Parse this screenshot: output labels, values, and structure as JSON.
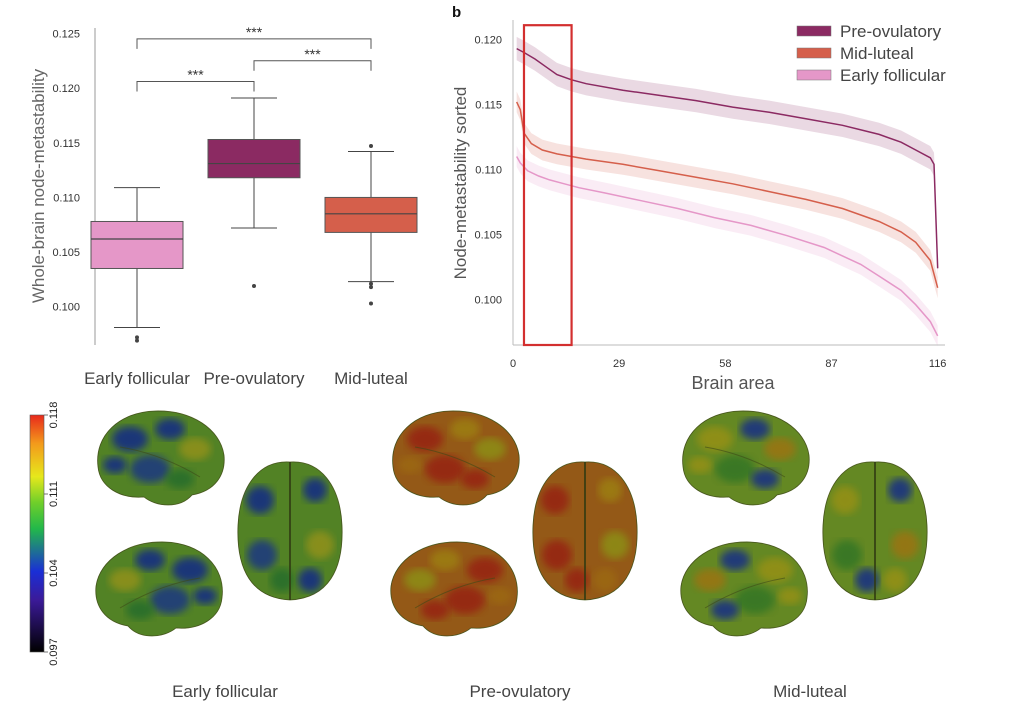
{
  "colors": {
    "early_follicular": "#E597C8",
    "pre_ovulatory": "#8B2A62",
    "mid_luteal": "#D55F4B",
    "highlight_box": "#D32F2F"
  },
  "chart_data": [
    {
      "type": "box",
      "ylabel": "Whole-brain node-metastability",
      "ylim": [
        0.0965,
        0.1255
      ],
      "yticks": [
        0.1,
        0.105,
        0.11,
        0.115,
        0.12,
        0.125
      ],
      "ytick_labels": [
        "0.100",
        "0.105",
        "0.110",
        "0.115",
        "0.120",
        "0.125"
      ],
      "categories": [
        "Early follicular",
        "Pre-ovulatory",
        "Mid-luteal"
      ],
      "boxes": [
        {
          "name": "Early follicular",
          "q1": 0.1035,
          "median": 0.1062,
          "q3": 0.1078,
          "whisker_low": 0.0981,
          "whisker_high": 0.1109,
          "outliers": [
            0.0969,
            0.0972
          ]
        },
        {
          "name": "Pre-ovulatory",
          "q1": 0.1118,
          "median": 0.1131,
          "q3": 0.1153,
          "whisker_low": 0.1072,
          "whisker_high": 0.1191,
          "outliers": [
            0.1019
          ]
        },
        {
          "name": "Mid-luteal",
          "q1": 0.1068,
          "median": 0.1085,
          "q3": 0.11,
          "whisker_low": 0.1023,
          "whisker_high": 0.1142,
          "outliers": [
            0.1147,
            0.1018,
            0.1021,
            0.1003
          ]
        }
      ],
      "significance": [
        {
          "from": 0,
          "to": 2,
          "label": "***",
          "y": 0.1245
        },
        {
          "from": 0,
          "to": 1,
          "label": "***",
          "y": 0.1206
        },
        {
          "from": 1,
          "to": 2,
          "label": "***",
          "y": 0.1225
        }
      ]
    },
    {
      "type": "line",
      "panel_label": "b",
      "xlabel": "Brain area",
      "ylabel": "Node-metastability sorted",
      "xlim": [
        0,
        118
      ],
      "ylim": [
        0.0965,
        0.1215
      ],
      "xticks": [
        0,
        29,
        58,
        87,
        116
      ],
      "xtick_labels": [
        "0",
        "29",
        "58",
        "87",
        "116"
      ],
      "yticks": [
        0.1,
        0.105,
        0.11,
        0.115,
        0.12
      ],
      "ytick_labels": [
        "0.100",
        "0.105",
        "0.110",
        "0.115",
        "0.120"
      ],
      "legend_position": "top-right",
      "highlight_range": {
        "x": [
          3,
          16
        ],
        "y": [
          0.0965,
          0.1211
        ]
      },
      "series": [
        {
          "name": "Pre-ovulatory",
          "color_key": "pre_ovulatory",
          "x": [
            1,
            3,
            6,
            9,
            12,
            16,
            20,
            30,
            40,
            50,
            60,
            70,
            80,
            90,
            100,
            106,
            110,
            114,
            115,
            116
          ],
          "y": [
            0.1193,
            0.119,
            0.1185,
            0.1179,
            0.1173,
            0.1169,
            0.1166,
            0.1161,
            0.1157,
            0.1153,
            0.1148,
            0.1144,
            0.1139,
            0.1134,
            0.1127,
            0.1121,
            0.1115,
            0.1109,
            0.1104,
            0.1024
          ],
          "band": 0.0009
        },
        {
          "name": "Mid-luteal",
          "color_key": "mid_luteal",
          "x": [
            1,
            2,
            3,
            5,
            8,
            12,
            16,
            20,
            30,
            40,
            50,
            60,
            70,
            80,
            90,
            100,
            106,
            110,
            114,
            116
          ],
          "y": [
            0.1152,
            0.1146,
            0.1128,
            0.112,
            0.1115,
            0.1112,
            0.111,
            0.1108,
            0.1104,
            0.1099,
            0.1094,
            0.1089,
            0.1083,
            0.1077,
            0.107,
            0.106,
            0.1052,
            0.1044,
            0.103,
            0.1009
          ],
          "band": 0.0008
        },
        {
          "name": "Early follicular",
          "color_key": "early_follicular",
          "x": [
            1,
            2,
            4,
            7,
            10,
            14,
            18,
            25,
            35,
            45,
            55,
            65,
            75,
            85,
            95,
            100,
            106,
            110,
            114,
            116
          ],
          "y": [
            0.111,
            0.1105,
            0.1099,
            0.1095,
            0.1092,
            0.1089,
            0.1086,
            0.1082,
            0.1076,
            0.107,
            0.1063,
            0.1057,
            0.1049,
            0.104,
            0.1027,
            0.1018,
            0.1007,
            0.0996,
            0.0983,
            0.0972
          ],
          "band": 0.0008
        }
      ]
    },
    {
      "type": "heatmap",
      "colorbar_labels": [
        "0.118",
        "0.111",
        "0.104",
        "0.097"
      ],
      "colorbar_range": [
        0.097,
        0.118
      ],
      "panels": [
        {
          "name": "Early follicular",
          "mean_level": 0.106
        },
        {
          "name": "Pre-ovulatory",
          "mean_level": 0.113
        },
        {
          "name": "Mid-luteal",
          "mean_level": 0.109
        }
      ]
    }
  ]
}
